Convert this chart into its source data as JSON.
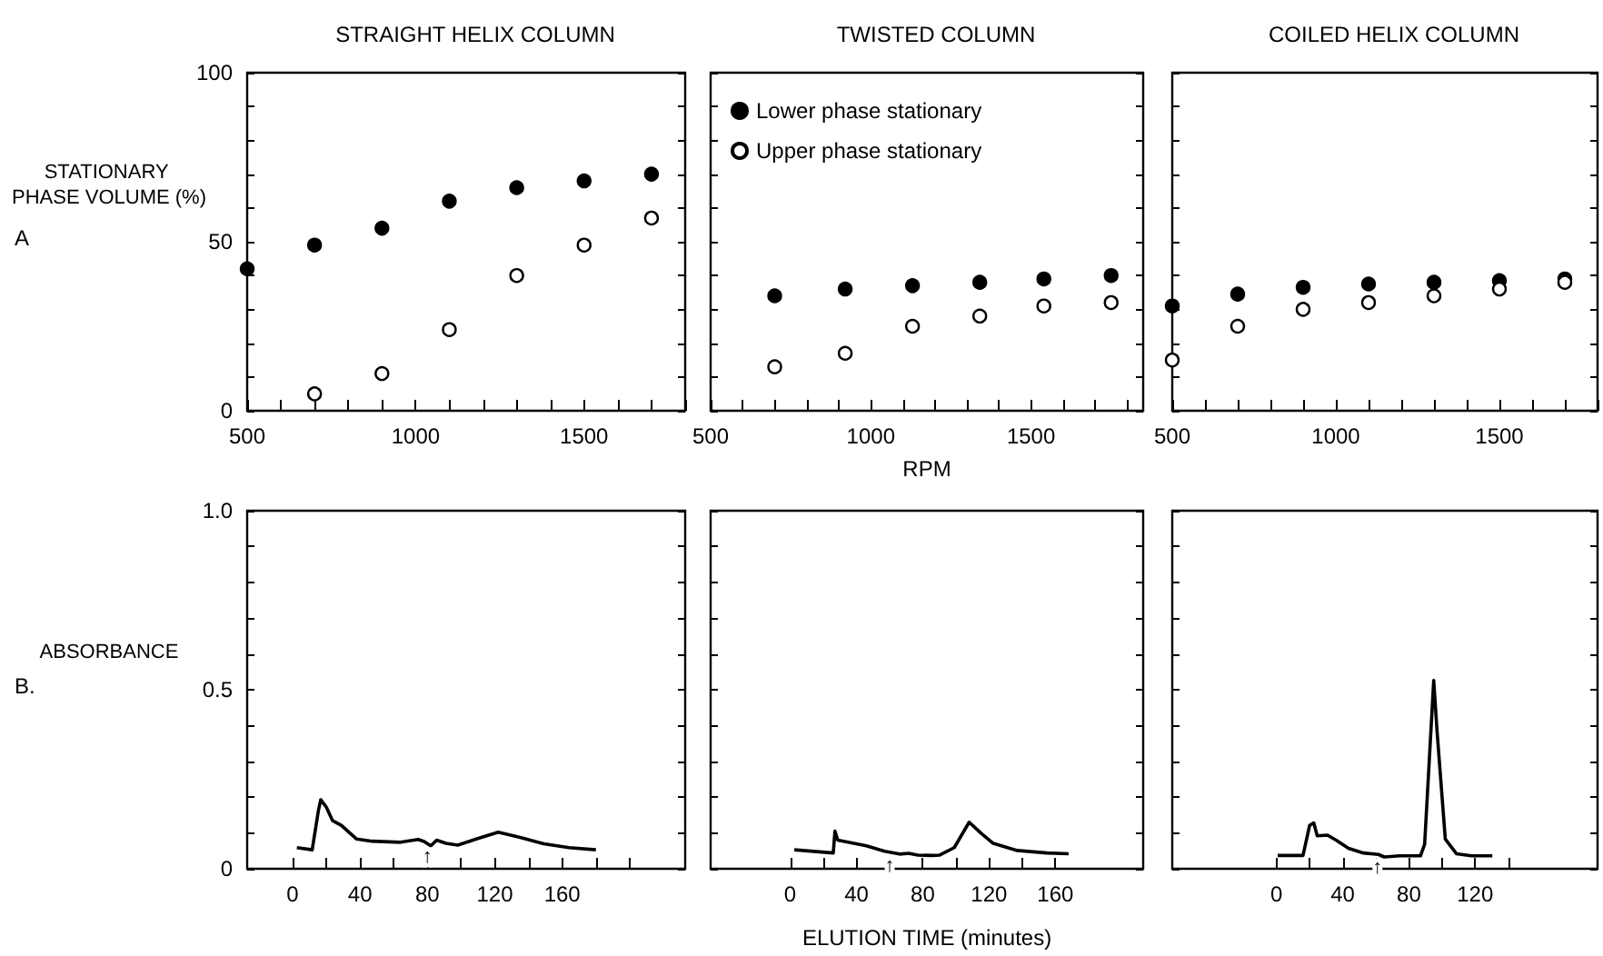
{
  "chart_data": [
    {
      "type": "scatter",
      "title": "STRAIGHT HELIX COLUMN",
      "ylabel": "STATIONARY PHASE VOLUME (%)",
      "annotations": [
        "A"
      ],
      "xlim": [
        500,
        1800
      ],
      "xticks": [
        500,
        {
          "value": 600,
          "label": null
        },
        {
          "value": 700,
          "label": null
        },
        {
          "value": 800,
          "label": null
        },
        {
          "value": 900,
          "label": null
        },
        1000,
        {
          "value": 1100,
          "label": null
        },
        {
          "value": 1200,
          "label": null
        },
        {
          "value": 1300,
          "label": null
        },
        {
          "value": 1400,
          "label": null
        },
        1500,
        {
          "value": 1600,
          "label": null
        },
        {
          "value": 1700,
          "label": null
        },
        {
          "value": 1800,
          "label": null
        }
      ],
      "ylim": [
        0,
        100
      ],
      "yticks": [
        0,
        {
          "value": 10,
          "label": null
        },
        {
          "value": 20,
          "label": null
        },
        {
          "value": 30,
          "label": null
        },
        {
          "value": 40,
          "label": null
        },
        50,
        {
          "value": 60,
          "label": null
        },
        {
          "value": 70,
          "label": null
        },
        {
          "value": 80,
          "label": null
        },
        {
          "value": 90,
          "label": null
        },
        100
      ],
      "marker": "circle",
      "series": [
        {
          "color": "#000000",
          "x": [
            500,
            700,
            900,
            1100,
            1300,
            1500,
            1700
          ],
          "values": [
            42,
            49,
            54,
            62,
            66,
            68,
            70
          ]
        },
        {
          "color": "#ffffff",
          "x": [
            700,
            900,
            1100,
            1300,
            1500,
            1700
          ],
          "values": [
            5,
            11,
            24,
            40,
            49,
            57
          ]
        }
      ]
    },
    {
      "type": "scatter",
      "title": "TWISTED COLUMN",
      "xlabel": "RPM",
      "legend": "top left",
      "tick_labels": "x",
      "xlim": [
        500,
        1850
      ],
      "xticks": [
        500,
        {
          "value": 600,
          "label": null
        },
        {
          "value": 700,
          "label": null
        },
        {
          "value": 800,
          "label": null
        },
        {
          "value": 900,
          "label": null
        },
        1000,
        {
          "value": 1100,
          "label": null
        },
        {
          "value": 1200,
          "label": null
        },
        {
          "value": 1300,
          "label": null
        },
        {
          "value": 1400,
          "label": null
        },
        1500,
        {
          "value": 1600,
          "label": null
        },
        {
          "value": 1700,
          "label": null
        },
        {
          "value": 1800,
          "label": null
        }
      ],
      "ylim": [
        0,
        100
      ],
      "yticks": [
        0,
        {
          "value": 10,
          "label": null
        },
        {
          "value": 20,
          "label": null
        },
        {
          "value": 30,
          "label": null
        },
        {
          "value": 40,
          "label": null
        },
        50,
        {
          "value": 60,
          "label": null
        },
        {
          "value": 70,
          "label": null
        },
        {
          "value": 80,
          "label": null
        },
        {
          "value": 90,
          "label": null
        },
        100
      ],
      "marker": "circle",
      "series": [
        {
          "name": "Lower phase stationary",
          "color": "#000000",
          "x": [
            700,
            920,
            1130,
            1340,
            1540,
            1750
          ],
          "values": [
            34,
            36,
            37,
            38,
            39,
            40
          ]
        },
        {
          "name": "Upper phase stationary",
          "color": "#ffffff",
          "x": [
            700,
            920,
            1130,
            1340,
            1540,
            1750
          ],
          "values": [
            13,
            17,
            25,
            28,
            31,
            32
          ]
        }
      ]
    },
    {
      "type": "scatter",
      "title": "COILED HELIX COLUMN",
      "tick_labels": "x",
      "xlim": [
        500,
        1800
      ],
      "xticks": [
        500,
        {
          "value": 600,
          "label": null
        },
        {
          "value": 700,
          "label": null
        },
        {
          "value": 800,
          "label": null
        },
        {
          "value": 900,
          "label": null
        },
        1000,
        {
          "value": 1100,
          "label": null
        },
        {
          "value": 1200,
          "label": null
        },
        {
          "value": 1300,
          "label": null
        },
        {
          "value": 1400,
          "label": null
        },
        1500,
        {
          "value": 1600,
          "label": null
        },
        {
          "value": 1700,
          "label": null
        },
        {
          "value": 1800,
          "label": null
        }
      ],
      "ylim": [
        0,
        100
      ],
      "yticks": [
        0,
        {
          "value": 10,
          "label": null
        },
        {
          "value": 20,
          "label": null
        },
        {
          "value": 30,
          "label": null
        },
        {
          "value": 40,
          "label": null
        },
        50,
        {
          "value": 60,
          "label": null
        },
        {
          "value": 70,
          "label": null
        },
        {
          "value": 80,
          "label": null
        },
        {
          "value": 90,
          "label": null
        },
        100
      ],
      "marker": "circle",
      "series": [
        {
          "color": "#000000",
          "x": [
            500,
            700,
            900,
            1100,
            1300,
            1500,
            1700
          ],
          "values": [
            31,
            34.5,
            36.5,
            37.5,
            38,
            38.5,
            39
          ]
        },
        {
          "color": "#ffffff",
          "x": [
            500,
            700,
            900,
            1100,
            1300,
            1500,
            1700
          ],
          "values": [
            15,
            25,
            30,
            32,
            34,
            36,
            38
          ]
        }
      ]
    },
    {
      "type": "line",
      "ylabel": "ABSORBANCE",
      "annotations": [
        "B.",
        {
          "text": "↑",
          "x": 80,
          "y": 0.07
        }
      ],
      "xlim": [
        -27,
        233
      ],
      "xticks": [
        0,
        {
          "value": 20,
          "label": null
        },
        40,
        {
          "value": 60,
          "label": null
        },
        80,
        {
          "value": 100,
          "label": null
        },
        120,
        {
          "value": 140,
          "label": null
        },
        160,
        {
          "value": 180,
          "label": null
        },
        {
          "value": 200,
          "label": null
        }
      ],
      "ylim": [
        0,
        1
      ],
      "yticks": [
        0,
        {
          "value": 0.1,
          "label": null
        },
        {
          "value": 0.2,
          "label": null
        },
        {
          "value": 0.3,
          "label": null
        },
        {
          "value": 0.4,
          "label": null
        },
        0.5,
        {
          "value": 0.6,
          "label": null
        },
        {
          "value": 0.7,
          "label": null
        },
        {
          "value": 0.8,
          "label": null
        },
        {
          "value": 0.9,
          "label": null
        },
        {
          "value": 1,
          "label": "1.0"
        }
      ],
      "series": [
        {
          "color": "#000000",
          "x": [
            2.5,
            11.6,
            15.3,
            16.7,
            20,
            23.6,
            29,
            32.7,
            38,
            47,
            64,
            74.5,
            78,
            82,
            85.5,
            91,
            98,
            109,
            122,
            134.5,
            149,
            164,
            180
          ],
          "values": [
            0.059,
            0.053,
            0.163,
            0.193,
            0.172,
            0.135,
            0.121,
            0.105,
            0.083,
            0.077,
            0.074,
            0.082,
            0.076,
            0.064,
            0.08,
            0.071,
            0.066,
            0.083,
            0.102,
            0.088,
            0.07,
            0.059,
            0.053
          ]
        }
      ]
    },
    {
      "type": "line",
      "xlabel": "ELUTION TIME (minutes)",
      "tick_labels": "x",
      "annotations": [
        {
          "text": "↑",
          "x": 60,
          "y": 0.046
        }
      ],
      "xlim": [
        -48,
        213
      ],
      "xticks": [
        0,
        {
          "value": 20,
          "label": null
        },
        40,
        {
          "value": 60,
          "label": null
        },
        80,
        {
          "value": 100,
          "label": null
        },
        120,
        {
          "value": 140,
          "label": null
        },
        160
      ],
      "ylim": [
        0,
        1
      ],
      "yticks": [
        0,
        {
          "value": 0.1,
          "label": null
        },
        {
          "value": 0.2,
          "label": null
        },
        {
          "value": 0.3,
          "label": null
        },
        {
          "value": 0.4,
          "label": null
        },
        0.5,
        {
          "value": 0.6,
          "label": null
        },
        {
          "value": 0.7,
          "label": null
        },
        {
          "value": 0.8,
          "label": null
        },
        {
          "value": 0.9,
          "label": null
        },
        1
      ],
      "series": [
        {
          "color": "#000000",
          "x": [
            2.5,
            26,
            27,
            28.7,
            35,
            46,
            57,
            66,
            71.6,
            77,
            86,
            90,
            99,
            108,
            115,
            122.5,
            137,
            155,
            168
          ],
          "values": [
            0.053,
            0.044,
            0.105,
            0.08,
            0.074,
            0.064,
            0.049,
            0.041,
            0.043,
            0.038,
            0.037,
            0.038,
            0.059,
            0.13,
            0.1,
            0.071,
            0.051,
            0.044,
            0.042
          ]
        }
      ]
    },
    {
      "type": "line",
      "tick_labels": "x",
      "annotations": [
        {
          "text": "↑",
          "x": 61,
          "y": 0.04
        }
      ],
      "xlim": [
        -63,
        194
      ],
      "xticks": [
        0,
        {
          "value": 20,
          "label": null
        },
        40,
        {
          "value": 60,
          "label": null
        },
        80,
        {
          "value": 100,
          "label": null
        },
        120,
        {
          "value": 140,
          "label": null
        }
      ],
      "ylim": [
        0,
        1
      ],
      "yticks": [
        0,
        {
          "value": 0.1,
          "label": null
        },
        {
          "value": 0.2,
          "label": null
        },
        {
          "value": 0.3,
          "label": null
        },
        {
          "value": 0.4,
          "label": null
        },
        0.5,
        {
          "value": 0.6,
          "label": null
        },
        {
          "value": 0.7,
          "label": null
        },
        {
          "value": 0.8,
          "label": null
        },
        {
          "value": 0.9,
          "label": null
        },
        1
      ],
      "series": [
        {
          "color": "#000000",
          "x": [
            0.7,
            16,
            20,
            22.5,
            24.6,
            30.8,
            36,
            43.5,
            52.5,
            61.6,
            65,
            74.3,
            87,
            89.5,
            95,
            97,
            102,
            108.7,
            117.8,
            130.4
          ],
          "values": [
            0.037,
            0.037,
            0.121,
            0.128,
            0.092,
            0.094,
            0.08,
            0.057,
            0.044,
            0.04,
            0.033,
            0.036,
            0.036,
            0.068,
            0.526,
            0.385,
            0.083,
            0.042,
            0.036,
            0.036
          ]
        }
      ]
    }
  ]
}
